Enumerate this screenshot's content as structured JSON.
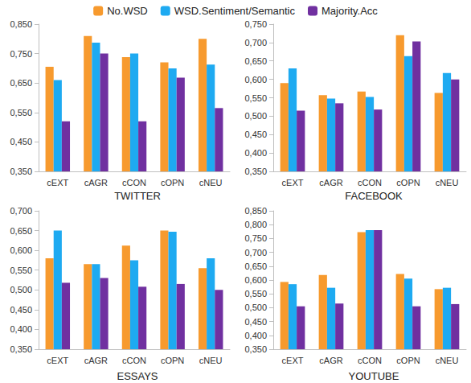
{
  "chart_data": [
    {
      "type": "bar",
      "title": "TWITTER",
      "grid": false,
      "categories": [
        "cEXT",
        "cAGR",
        "cCON",
        "cOPN",
        "cNEU"
      ],
      "series": [
        {
          "name": "No.WSD",
          "color": "#f79a2e",
          "values": [
            0.705,
            0.81,
            0.738,
            0.72,
            0.8
          ]
        },
        {
          "name": "WSD.Sentiment/Semantic",
          "color": "#1eaaf1",
          "values": [
            0.66,
            0.787,
            0.75,
            0.7,
            0.713
          ]
        },
        {
          "name": "Majority.Acc",
          "color": "#7030a0",
          "values": [
            0.52,
            0.75,
            0.52,
            0.668,
            0.565
          ]
        }
      ],
      "ylim": [
        0.35,
        0.85
      ],
      "yticks": [
        {
          "value": 0.35,
          "label": "0,350"
        },
        {
          "value": 0.45,
          "label": "0,450"
        },
        {
          "value": 0.55,
          "label": "0,550"
        },
        {
          "value": 0.65,
          "label": "0,650"
        },
        {
          "value": 0.75,
          "label": "0,750"
        },
        {
          "value": 0.85,
          "label": "0,850"
        }
      ]
    },
    {
      "type": "bar",
      "title": "FACEBOOK",
      "grid": false,
      "categories": [
        "cEXT",
        "cAGR",
        "cCON",
        "cOPN",
        "cNEU"
      ],
      "series": [
        {
          "name": "No.WSD",
          "color": "#f79a2e",
          "values": [
            0.59,
            0.557,
            0.567,
            0.72,
            0.563
          ]
        },
        {
          "name": "WSD.Sentiment/Semantic",
          "color": "#1eaaf1",
          "values": [
            0.63,
            0.548,
            0.552,
            0.663,
            0.617
          ]
        },
        {
          "name": "Majority.Acc",
          "color": "#7030a0",
          "values": [
            0.515,
            0.535,
            0.518,
            0.703,
            0.6
          ]
        }
      ],
      "ylim": [
        0.35,
        0.75
      ],
      "yticks": [
        {
          "value": 0.35,
          "label": "0,350"
        },
        {
          "value": 0.4,
          "label": "0,400"
        },
        {
          "value": 0.45,
          "label": "0,450"
        },
        {
          "value": 0.5,
          "label": "0,500"
        },
        {
          "value": 0.55,
          "label": "0,550"
        },
        {
          "value": 0.6,
          "label": "0,600"
        },
        {
          "value": 0.65,
          "label": "0,650"
        },
        {
          "value": 0.7,
          "label": "0,700"
        },
        {
          "value": 0.75,
          "label": "0,750"
        }
      ]
    },
    {
      "type": "bar",
      "title": "ESSAYS",
      "grid": false,
      "categories": [
        "cEXT",
        "cAGR",
        "cCON",
        "cOPN",
        "cNEU"
      ],
      "series": [
        {
          "name": "No.WSD",
          "color": "#f79a2e",
          "values": [
            0.58,
            0.565,
            0.612,
            0.65,
            0.555
          ]
        },
        {
          "name": "WSD.Sentiment/Semantic",
          "color": "#1eaaf1",
          "values": [
            0.65,
            0.565,
            0.575,
            0.647,
            0.58
          ]
        },
        {
          "name": "Majority.Acc",
          "color": "#7030a0",
          "values": [
            0.518,
            0.53,
            0.508,
            0.515,
            0.5
          ]
        }
      ],
      "ylim": [
        0.35,
        0.7
      ],
      "yticks": [
        {
          "value": 0.35,
          "label": "0,350"
        },
        {
          "value": 0.4,
          "label": "0,400"
        },
        {
          "value": 0.45,
          "label": "0,450"
        },
        {
          "value": 0.5,
          "label": "0,500"
        },
        {
          "value": 0.55,
          "label": "0,550"
        },
        {
          "value": 0.6,
          "label": "0,600"
        },
        {
          "value": 0.65,
          "label": "0,650"
        },
        {
          "value": 0.7,
          "label": "0,700"
        }
      ]
    },
    {
      "type": "bar",
      "title": "YOUTUBE",
      "grid": false,
      "categories": [
        "cEXT",
        "cAGR",
        "cCON",
        "cOPN",
        "cNEU"
      ],
      "series": [
        {
          "name": "No.WSD",
          "color": "#f79a2e",
          "values": [
            0.593,
            0.618,
            0.773,
            0.622,
            0.567
          ]
        },
        {
          "name": "WSD.Sentiment/Semantic",
          "color": "#1eaaf1",
          "values": [
            0.585,
            0.572,
            0.78,
            0.605,
            0.572
          ]
        },
        {
          "name": "Majority.Acc",
          "color": "#7030a0",
          "values": [
            0.505,
            0.515,
            0.78,
            0.505,
            0.513
          ]
        }
      ],
      "ylim": [
        0.35,
        0.85
      ],
      "yticks": [
        {
          "value": 0.35,
          "label": "0,350"
        },
        {
          "value": 0.4,
          "label": "0,400"
        },
        {
          "value": 0.45,
          "label": "0,450"
        },
        {
          "value": 0.5,
          "label": "0,500"
        },
        {
          "value": 0.55,
          "label": "0,550"
        },
        {
          "value": 0.6,
          "label": "0,600"
        },
        {
          "value": 0.65,
          "label": "0,650"
        },
        {
          "value": 0.7,
          "label": "0,700"
        },
        {
          "value": 0.75,
          "label": "0,750"
        },
        {
          "value": 0.8,
          "label": "0,800"
        },
        {
          "value": 0.85,
          "label": "0,850"
        }
      ]
    }
  ]
}
